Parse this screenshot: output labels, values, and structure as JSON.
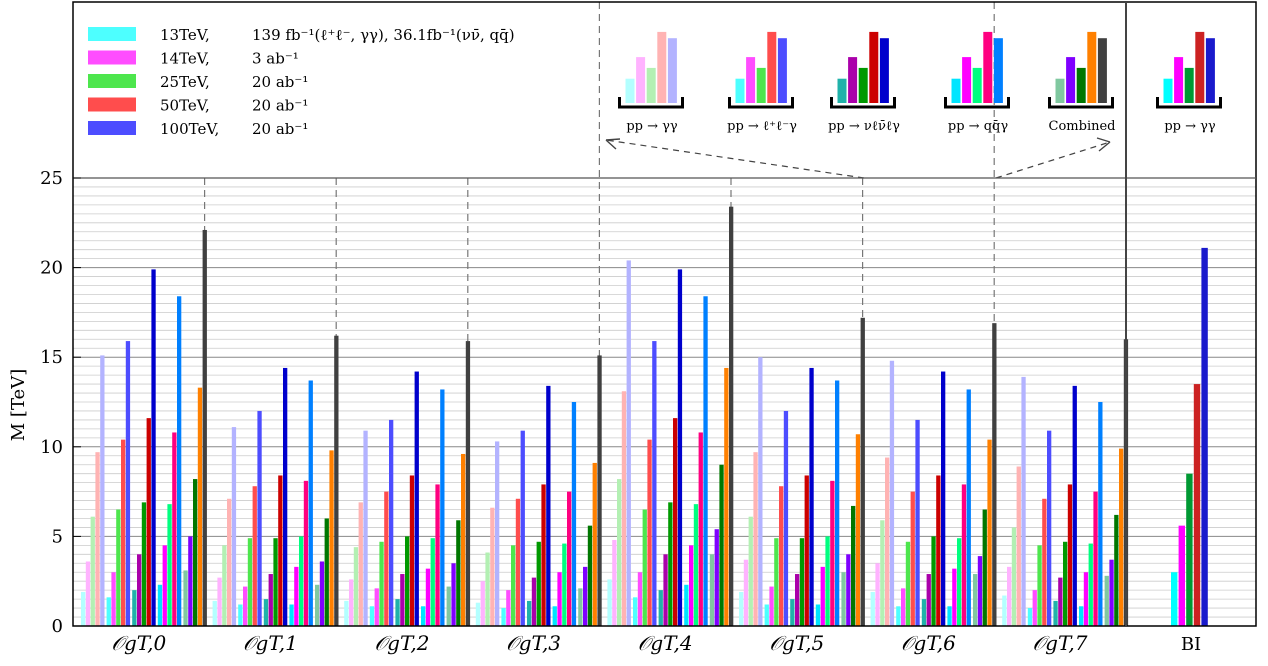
{
  "chart_data": {
    "type": "bar",
    "ylabel": "M [TeV]",
    "ylim": [
      0,
      25
    ],
    "yticks": [
      "0",
      "5",
      "10",
      "15",
      "20",
      "25"
    ],
    "grid": true,
    "legend": {
      "placement": "top-left",
      "entries": [
        {
          "name": "13TeV,",
          "lumi": "139 fb⁻¹(ℓ⁺ℓ⁻, γγ),  36.1fb⁻¹(νν̄, qq̄)",
          "color": "#4dffff"
        },
        {
          "name": "14TeV,",
          "lumi": "3 ab⁻¹",
          "color": "#ff4dff"
        },
        {
          "name": "25TeV,",
          "lumi": "20 ab⁻¹",
          "color": "#4de64d"
        },
        {
          "name": "50TeV,",
          "lumi": "20 ab⁻¹",
          "color": "#ff4d4d"
        },
        {
          "name": "100TeV,",
          "lumi": "20 ab⁻¹",
          "color": "#4d4dff"
        }
      ]
    },
    "processes": [
      "pp → γγ",
      "pp → ℓ⁺ℓ⁻γ",
      "pp → νℓν̄ℓγ",
      "pp → qq̄γ",
      "Combined"
    ],
    "process_colors": [
      [
        "#b3ffff",
        "#ffb3ff",
        "#b3f0b3",
        "#ffb3b3",
        "#b3b3ff"
      ],
      [
        "#4dffff",
        "#ff4dff",
        "#4de64d",
        "#ff4d4d",
        "#4d4dff"
      ],
      [
        "#20b2aa",
        "#aa00aa",
        "#009900",
        "#cc0000",
        "#0000cc"
      ],
      [
        "#00e5ff",
        "#ff00ff",
        "#00ff80",
        "#ff0080",
        "#0080ff"
      ],
      [
        "#80c8a0",
        "#7f00ff",
        "#007700",
        "#ff8000",
        "#404040"
      ]
    ],
    "bi_colors": [
      "#00ffff",
      "#ff00ff",
      "#009933",
      "#cc2222",
      "#1a1acc"
    ],
    "categories": [
      "𝒪gT,0",
      "𝒪gT,1",
      "𝒪gT,2",
      "𝒪gT,3",
      "𝒪gT,4",
      "𝒪gT,5",
      "𝒪gT,6",
      "𝒪gT,7"
    ],
    "values": [
      [
        [
          1.9,
          3.6,
          6.1,
          9.7,
          15.1
        ],
        [
          1.6,
          3.0,
          6.5,
          10.4,
          15.9
        ],
        [
          2.0,
          4.0,
          6.9,
          11.6,
          19.9
        ],
        [
          2.3,
          4.5,
          6.8,
          10.8,
          18.4
        ],
        [
          3.1,
          5.0,
          8.2,
          13.3,
          22.1
        ]
      ],
      [
        [
          1.4,
          2.7,
          4.5,
          7.1,
          11.1
        ],
        [
          1.2,
          2.2,
          4.9,
          7.8,
          12.0
        ],
        [
          1.5,
          2.9,
          4.9,
          8.4,
          14.4
        ],
        [
          1.2,
          3.3,
          5.0,
          8.1,
          13.7
        ],
        [
          2.3,
          3.6,
          6.0,
          9.8,
          16.2
        ]
      ],
      [
        [
          1.4,
          2.6,
          4.4,
          6.9,
          10.9
        ],
        [
          1.1,
          2.1,
          4.7,
          7.5,
          11.5
        ],
        [
          1.5,
          2.9,
          5.0,
          8.4,
          14.2
        ],
        [
          1.1,
          3.2,
          4.9,
          7.9,
          13.2
        ],
        [
          2.2,
          3.5,
          5.9,
          9.6,
          15.9
        ]
      ],
      [
        [
          1.3,
          2.5,
          4.1,
          6.6,
          10.3
        ],
        [
          1.0,
          2.0,
          4.5,
          7.1,
          10.9
        ],
        [
          1.4,
          2.7,
          4.7,
          7.9,
          13.4
        ],
        [
          1.1,
          3.0,
          4.6,
          7.5,
          12.5
        ],
        [
          2.1,
          3.3,
          5.6,
          9.1,
          15.1
        ]
      ],
      [
        [
          2.6,
          4.8,
          8.2,
          13.1,
          20.4
        ],
        [
          1.6,
          3.0,
          6.5,
          10.4,
          15.9
        ],
        [
          2.0,
          4.0,
          6.9,
          11.6,
          19.9
        ],
        [
          2.3,
          4.5,
          6.8,
          10.8,
          18.4
        ],
        [
          4.0,
          5.4,
          9.0,
          14.4,
          23.4
        ]
      ],
      [
        [
          1.9,
          3.7,
          6.1,
          9.7,
          15.0
        ],
        [
          1.2,
          2.2,
          4.9,
          7.8,
          12.0
        ],
        [
          1.5,
          2.9,
          4.9,
          8.4,
          14.4
        ],
        [
          1.2,
          3.3,
          5.0,
          8.1,
          13.7
        ],
        [
          3.0,
          4.0,
          6.7,
          10.7,
          17.2
        ]
      ],
      [
        [
          1.9,
          3.5,
          5.9,
          9.4,
          14.8
        ],
        [
          1.1,
          2.1,
          4.7,
          7.5,
          11.5
        ],
        [
          1.5,
          2.9,
          5.0,
          8.4,
          14.2
        ],
        [
          1.1,
          3.2,
          4.9,
          7.9,
          13.2
        ],
        [
          2.9,
          3.9,
          6.5,
          10.4,
          16.9
        ]
      ],
      [
        [
          1.7,
          3.3,
          5.5,
          8.9,
          13.9
        ],
        [
          1.0,
          2.0,
          4.5,
          7.1,
          10.9
        ],
        [
          1.4,
          2.7,
          4.7,
          7.9,
          13.4
        ],
        [
          1.1,
          3.0,
          4.6,
          7.5,
          12.5
        ],
        [
          2.8,
          3.7,
          6.2,
          9.9,
          16.0
        ]
      ]
    ],
    "bi": {
      "label": "BI",
      "process": "pp → γγ",
      "values": [
        3.0,
        5.6,
        8.5,
        13.5,
        21.1
      ]
    }
  }
}
